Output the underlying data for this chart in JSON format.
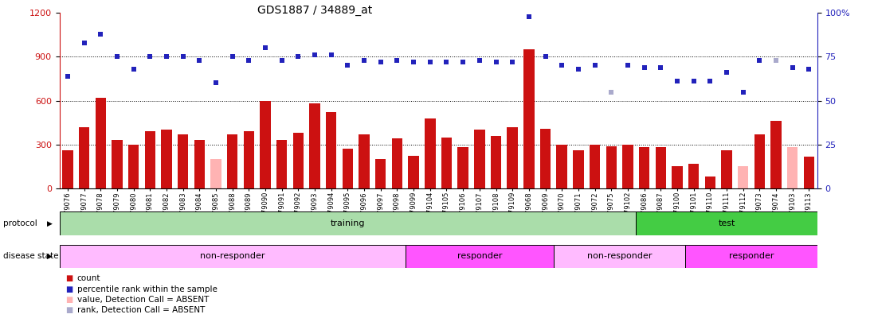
{
  "title": "GDS1887 / 34889_at",
  "samples": [
    "GSM79076",
    "GSM79077",
    "GSM79078",
    "GSM79079",
    "GSM79080",
    "GSM79081",
    "GSM79082",
    "GSM79083",
    "GSM79084",
    "GSM79085",
    "GSM79088",
    "GSM79089",
    "GSM79090",
    "GSM79091",
    "GSM79092",
    "GSM79093",
    "GSM79094",
    "GSM79095",
    "GSM79096",
    "GSM79097",
    "GSM79098",
    "GSM79099",
    "GSM79104",
    "GSM79105",
    "GSM79106",
    "GSM79107",
    "GSM79108",
    "GSM79109",
    "GSM79068",
    "GSM79069",
    "GSM79070",
    "GSM79071",
    "GSM79072",
    "GSM79075",
    "GSM79102",
    "GSM79086",
    "GSM79087",
    "GSM79100",
    "GSM79101",
    "GSM79110",
    "GSM79111",
    "GSM79112",
    "GSM79073",
    "GSM79074",
    "GSM79103",
    "GSM79113"
  ],
  "count_values": [
    260,
    420,
    620,
    330,
    300,
    390,
    400,
    370,
    330,
    200,
    370,
    390,
    600,
    330,
    380,
    580,
    520,
    270,
    370,
    200,
    340,
    220,
    480,
    350,
    280,
    400,
    360,
    420,
    950,
    410,
    300,
    260,
    300,
    290,
    300,
    280,
    280,
    150,
    170,
    80,
    260,
    150,
    370,
    460,
    280,
    215
  ],
  "rank_pct": [
    64,
    83,
    88,
    75,
    68,
    75,
    75,
    75,
    73,
    60,
    75,
    73,
    80,
    73,
    75,
    76,
    76,
    70,
    73,
    72,
    73,
    72,
    72,
    72,
    72,
    73,
    72,
    72,
    98,
    75,
    70,
    68,
    70,
    55,
    70,
    69,
    69,
    61,
    61,
    61,
    66,
    55,
    73,
    73,
    69,
    68
  ],
  "absent_count_mask": [
    false,
    false,
    false,
    false,
    false,
    false,
    false,
    false,
    false,
    true,
    false,
    false,
    false,
    false,
    false,
    false,
    false,
    false,
    false,
    false,
    false,
    false,
    false,
    false,
    false,
    false,
    false,
    false,
    false,
    false,
    false,
    false,
    false,
    false,
    false,
    false,
    false,
    false,
    false,
    false,
    false,
    true,
    false,
    false,
    true,
    false
  ],
  "absent_rank_mask": [
    false,
    false,
    false,
    false,
    false,
    false,
    false,
    false,
    false,
    false,
    false,
    false,
    false,
    false,
    false,
    false,
    false,
    false,
    false,
    false,
    false,
    false,
    false,
    false,
    false,
    false,
    false,
    false,
    false,
    false,
    false,
    false,
    false,
    true,
    false,
    false,
    false,
    false,
    false,
    false,
    false,
    false,
    false,
    true,
    false,
    false
  ],
  "ylim_left": [
    0,
    1200
  ],
  "ylim_right": [
    0,
    100
  ],
  "left_ticks": [
    0,
    300,
    600,
    900,
    1200
  ],
  "right_ticks": [
    0,
    25,
    50,
    75,
    100
  ],
  "protocol_groups": [
    {
      "label": "training",
      "start": 0,
      "end": 35,
      "color": "#AADDAA"
    },
    {
      "label": "test",
      "start": 35,
      "end": 46,
      "color": "#44CC44"
    }
  ],
  "disease_groups": [
    {
      "label": "non-responder",
      "start": 0,
      "end": 21,
      "color": "#FFBBFF"
    },
    {
      "label": "responder",
      "start": 21,
      "end": 30,
      "color": "#FF55FF"
    },
    {
      "label": "non-responder",
      "start": 30,
      "end": 38,
      "color": "#FFBBFF"
    },
    {
      "label": "responder",
      "start": 38,
      "end": 46,
      "color": "#FF55FF"
    }
  ],
  "bar_color_present": "#CC1111",
  "bar_color_absent": "#FFB3B3",
  "rank_color_present": "#2222BB",
  "rank_color_absent": "#AAAACC",
  "bar_width": 0.65,
  "title_fontsize": 10,
  "tick_fontsize": 6.0,
  "left_axis_color": "#CC1111",
  "right_axis_color": "#2222BB"
}
